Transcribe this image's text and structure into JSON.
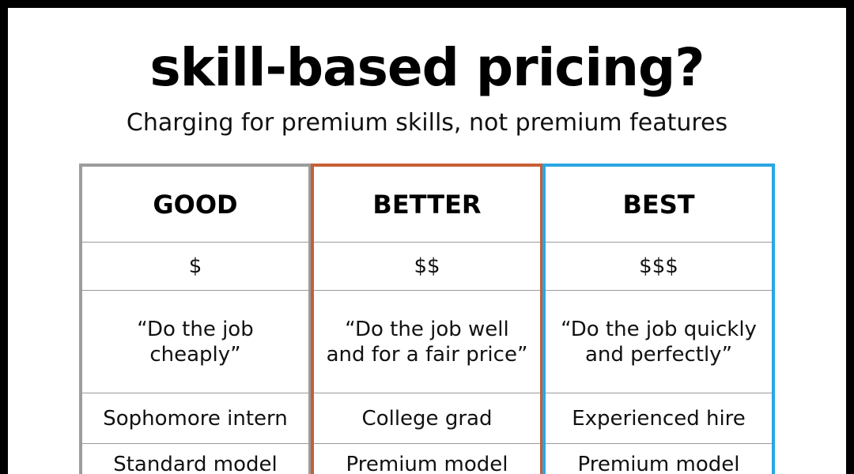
{
  "title": "skill-based pricing?",
  "subtitle": "Charging for premium skills, not premium features",
  "colors": {
    "good_border": "#9c9c9c",
    "better_border": "#c65f36",
    "best_border": "#2aa6e4",
    "frame": "#000000",
    "background": "#ffffff"
  },
  "columns": [
    {
      "header": "GOOD",
      "price": "$",
      "quote_line1": "“Do the job",
      "quote_line2": "cheaply”",
      "hire": "Sophomore intern",
      "model": "Standard model"
    },
    {
      "header": "BETTER",
      "price": "$$",
      "quote_line1": "“Do the job well",
      "quote_line2": "and for a fair price”",
      "hire": "College grad",
      "model": "Premium model"
    },
    {
      "header": "BEST",
      "price": "$$$",
      "quote_line1": "“Do the job quickly",
      "quote_line2": "and perfectly”",
      "hire": "Experienced hire",
      "model": "Premium model"
    }
  ]
}
